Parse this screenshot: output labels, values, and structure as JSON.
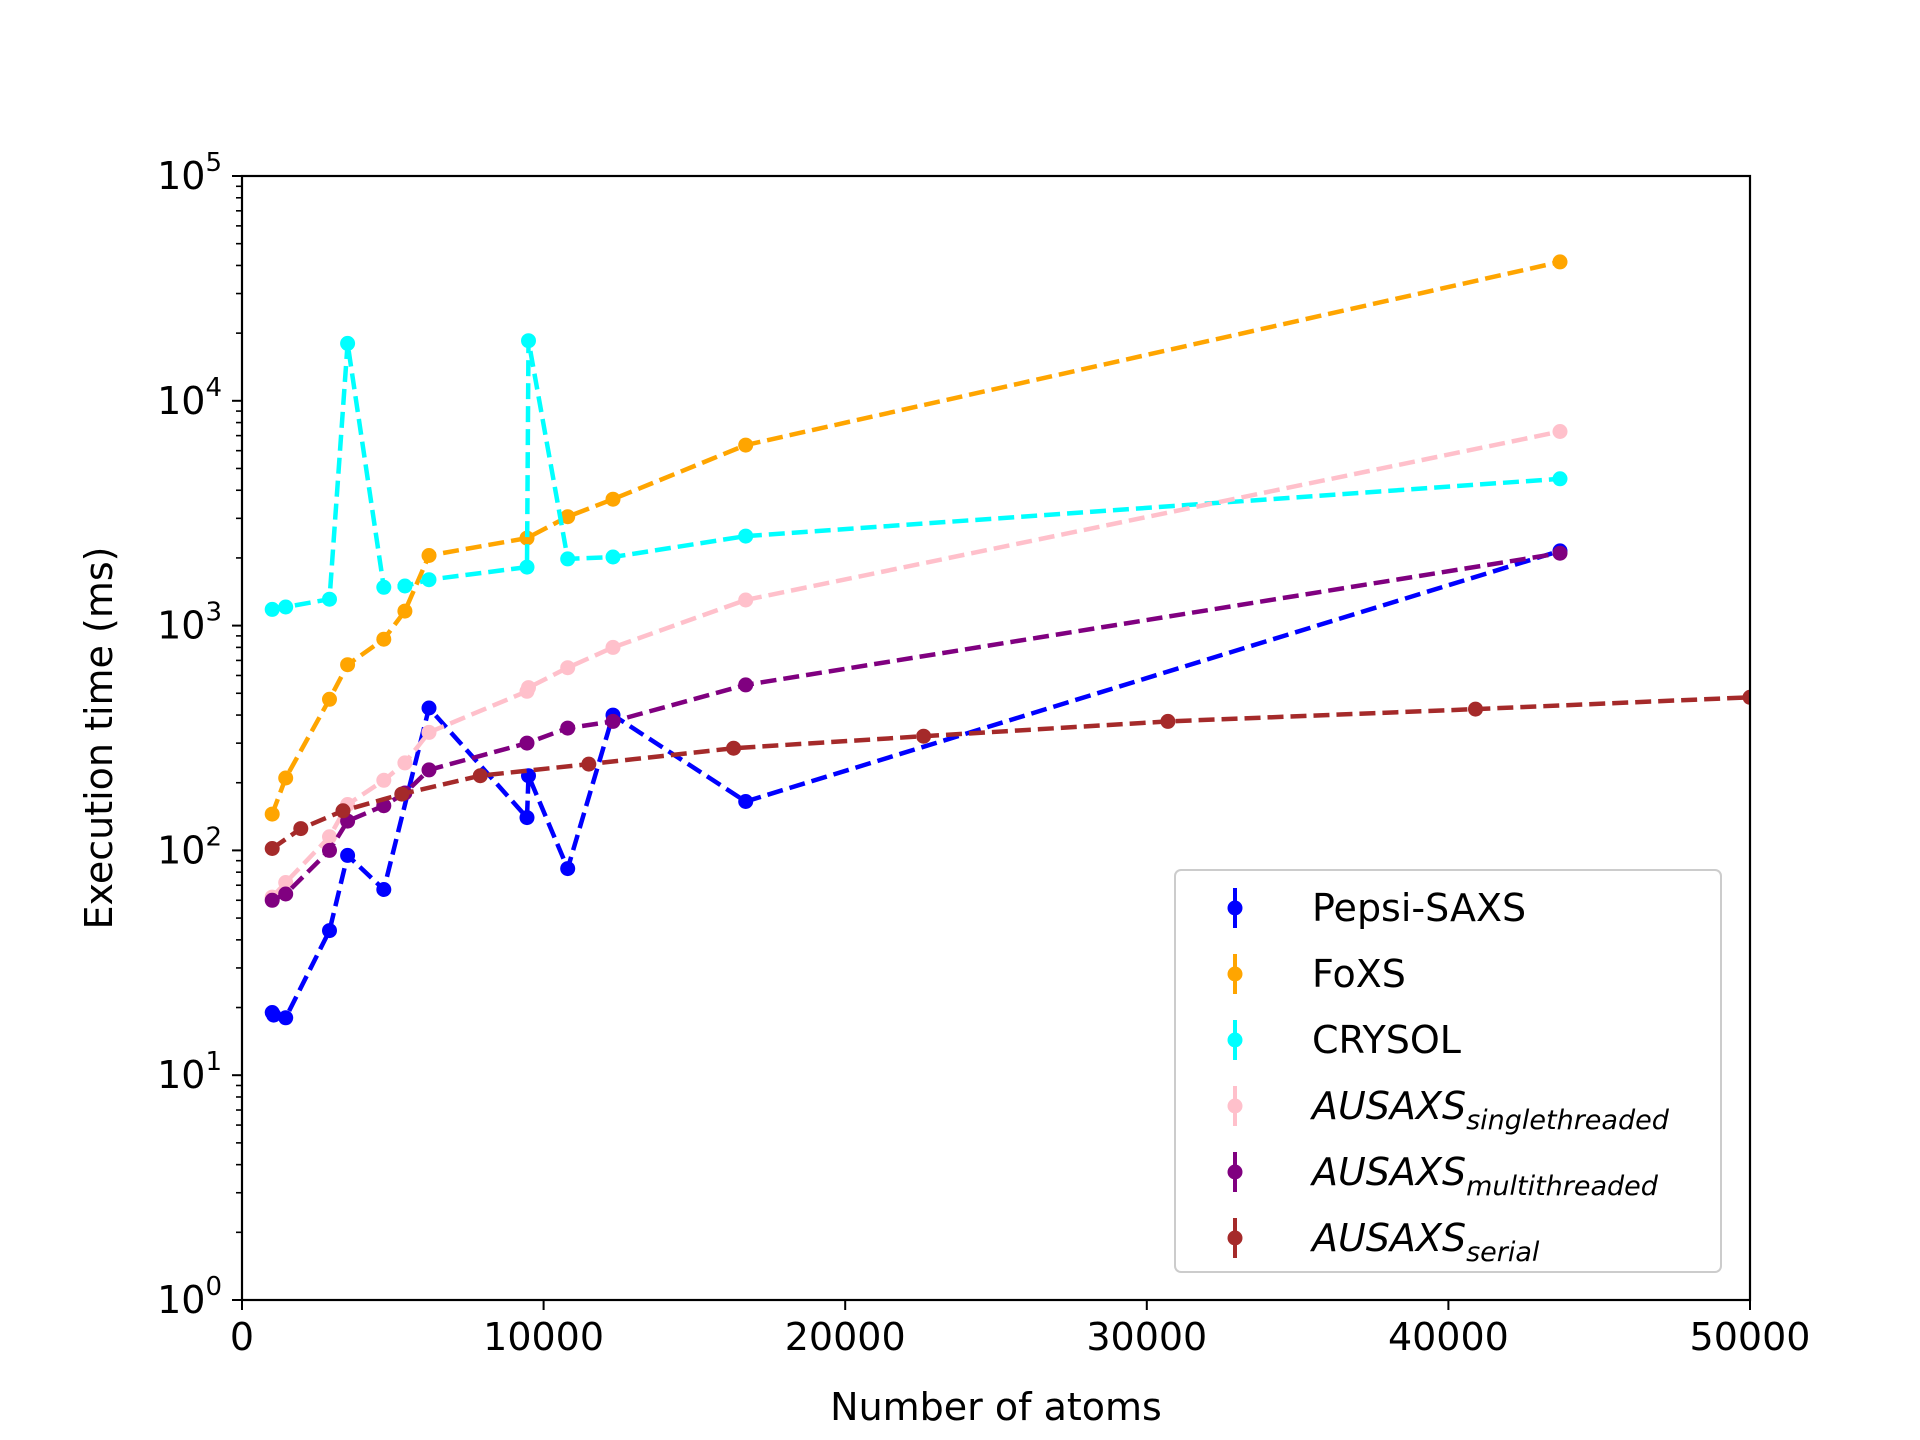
{
  "chart_data": {
    "type": "line",
    "title": "",
    "xlabel": "Number of atoms",
    "ylabel": "Execution time (ms)",
    "xlim": [
      0,
      50000
    ],
    "ylim": [
      1,
      100000
    ],
    "yscale": "log",
    "x_ticks": [
      0,
      10000,
      20000,
      30000,
      40000,
      50000
    ],
    "x_tick_labels": [
      "0",
      "10000",
      "20000",
      "30000",
      "40000",
      "50000"
    ],
    "y_ticks": [
      1,
      10,
      100,
      1000,
      10000,
      100000
    ],
    "y_tick_labels": [
      {
        "base": "10",
        "exp": "0"
      },
      {
        "base": "10",
        "exp": "1"
      },
      {
        "base": "10",
        "exp": "2"
      },
      {
        "base": "10",
        "exp": "3"
      },
      {
        "base": "10",
        "exp": "4"
      },
      {
        "base": "10",
        "exp": "5"
      }
    ],
    "grid": false,
    "legend_position": "lower-right",
    "series": [
      {
        "name": "Pepsi-SAXS",
        "name_base": "Pepsi-SAXS",
        "name_sub": "",
        "italic": false,
        "color": "#0000ff",
        "linestyle": "dashed",
        "points": [
          [
            1000,
            19
          ],
          [
            1050,
            18.5
          ],
          [
            1450,
            18
          ],
          [
            2900,
            44
          ],
          [
            3500,
            95
          ],
          [
            4700,
            67
          ],
          [
            6200,
            430
          ],
          [
            9450,
            140
          ],
          [
            9500,
            215
          ],
          [
            10800,
            83
          ],
          [
            12300,
            400
          ],
          [
            16700,
            165
          ],
          [
            43700,
            2150
          ]
        ]
      },
      {
        "name": "FoXS",
        "name_base": "FoXS",
        "name_sub": "",
        "italic": false,
        "color": "#ffa500",
        "linestyle": "dashed",
        "points": [
          [
            1000,
            145
          ],
          [
            1450,
            210
          ],
          [
            2900,
            470
          ],
          [
            3500,
            670
          ],
          [
            4700,
            870
          ],
          [
            5400,
            1160
          ],
          [
            6200,
            2050
          ],
          [
            9450,
            2450
          ],
          [
            10800,
            3050
          ],
          [
            12300,
            3650
          ],
          [
            16700,
            6350
          ],
          [
            43700,
            41500
          ]
        ]
      },
      {
        "name": "CRYSOL",
        "name_base": "CRYSOL",
        "name_sub": "",
        "italic": false,
        "color": "#00ffff",
        "linestyle": "dashed",
        "points": [
          [
            1000,
            1180
          ],
          [
            1450,
            1210
          ],
          [
            2900,
            1310
          ],
          [
            3500,
            18000
          ],
          [
            4700,
            1480
          ],
          [
            5400,
            1500
          ],
          [
            6200,
            1600
          ],
          [
            9450,
            1820
          ],
          [
            9500,
            18500
          ],
          [
            10800,
            1980
          ],
          [
            12300,
            2020
          ],
          [
            16700,
            2500
          ],
          [
            43700,
            4500
          ]
        ]
      },
      {
        "name": "AUSAXS_singlethreaded",
        "name_base": "AUSAXS",
        "name_sub": "singlethreaded",
        "italic": true,
        "color": "#ffc0cb",
        "linestyle": "dashed",
        "points": [
          [
            1000,
            62
          ],
          [
            1450,
            72
          ],
          [
            2900,
            115
          ],
          [
            3500,
            160
          ],
          [
            4700,
            205
          ],
          [
            5400,
            245
          ],
          [
            6200,
            335
          ],
          [
            9450,
            510
          ],
          [
            9500,
            530
          ],
          [
            10800,
            650
          ],
          [
            12300,
            800
          ],
          [
            16700,
            1300
          ],
          [
            43700,
            7300
          ]
        ]
      },
      {
        "name": "AUSAXS_multithreaded",
        "name_base": "AUSAXS",
        "name_sub": "multithreaded",
        "italic": true,
        "color": "#800080",
        "linestyle": "dashed",
        "points": [
          [
            1000,
            60
          ],
          [
            1450,
            64
          ],
          [
            2900,
            100
          ],
          [
            3500,
            135
          ],
          [
            4700,
            158
          ],
          [
            5400,
            180
          ],
          [
            6200,
            228
          ],
          [
            9450,
            300
          ],
          [
            10800,
            350
          ],
          [
            12300,
            375
          ],
          [
            16700,
            545
          ],
          [
            43700,
            2100
          ]
        ]
      },
      {
        "name": "AUSAXS_serial",
        "name_base": "AUSAXS",
        "name_sub": "serial",
        "italic": true,
        "color": "#a52a2a",
        "linestyle": "dashed",
        "points": [
          [
            1000,
            102
          ],
          [
            1950,
            125
          ],
          [
            3350,
            150
          ],
          [
            5300,
            178
          ],
          [
            7900,
            215
          ],
          [
            11500,
            242
          ],
          [
            16300,
            285
          ],
          [
            22600,
            322
          ],
          [
            30700,
            375
          ],
          [
            40900,
            425
          ],
          [
            50000,
            480
          ]
        ]
      }
    ]
  }
}
